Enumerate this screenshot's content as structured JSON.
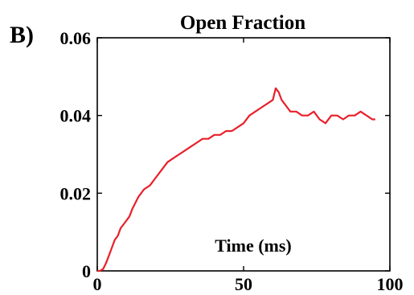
{
  "panel_label": "B)",
  "chart_data": {
    "type": "line",
    "title": "Open Fraction",
    "xlabel": "Time (ms)",
    "ylabel": "",
    "xlim": [
      0,
      100
    ],
    "ylim": [
      0,
      0.06
    ],
    "xticks": [
      0,
      50,
      100
    ],
    "xtick_labels": [
      "0",
      "50",
      "100"
    ],
    "yticks": [
      0,
      0.02,
      0.04,
      0.06
    ],
    "ytick_labels": [
      "0",
      "0.02",
      "0.04",
      "0.06"
    ],
    "grid": false,
    "legend": "none",
    "series": [
      {
        "color": "#e8202a",
        "x": [
          0,
          1,
          2,
          3,
          4,
          5,
          6,
          7,
          8,
          9,
          10,
          11,
          12,
          14,
          16,
          18,
          20,
          22,
          24,
          26,
          28,
          30,
          32,
          34,
          36,
          38,
          40,
          42,
          44,
          46,
          48,
          50,
          52,
          54,
          56,
          58,
          60,
          61,
          62,
          63,
          64,
          65,
          66,
          68,
          70,
          72,
          74,
          76,
          78,
          80,
          82,
          84,
          86,
          88,
          90,
          92,
          94,
          95
        ],
        "y": [
          0.0,
          0.0,
          0.0005,
          0.002,
          0.004,
          0.006,
          0.008,
          0.009,
          0.011,
          0.012,
          0.013,
          0.014,
          0.016,
          0.019,
          0.021,
          0.022,
          0.024,
          0.026,
          0.028,
          0.029,
          0.03,
          0.031,
          0.032,
          0.033,
          0.034,
          0.034,
          0.035,
          0.035,
          0.036,
          0.036,
          0.037,
          0.038,
          0.04,
          0.041,
          0.042,
          0.043,
          0.044,
          0.047,
          0.046,
          0.044,
          0.043,
          0.042,
          0.041,
          0.041,
          0.04,
          0.04,
          0.041,
          0.039,
          0.038,
          0.04,
          0.04,
          0.039,
          0.04,
          0.04,
          0.041,
          0.04,
          0.039,
          0.039
        ]
      }
    ]
  }
}
